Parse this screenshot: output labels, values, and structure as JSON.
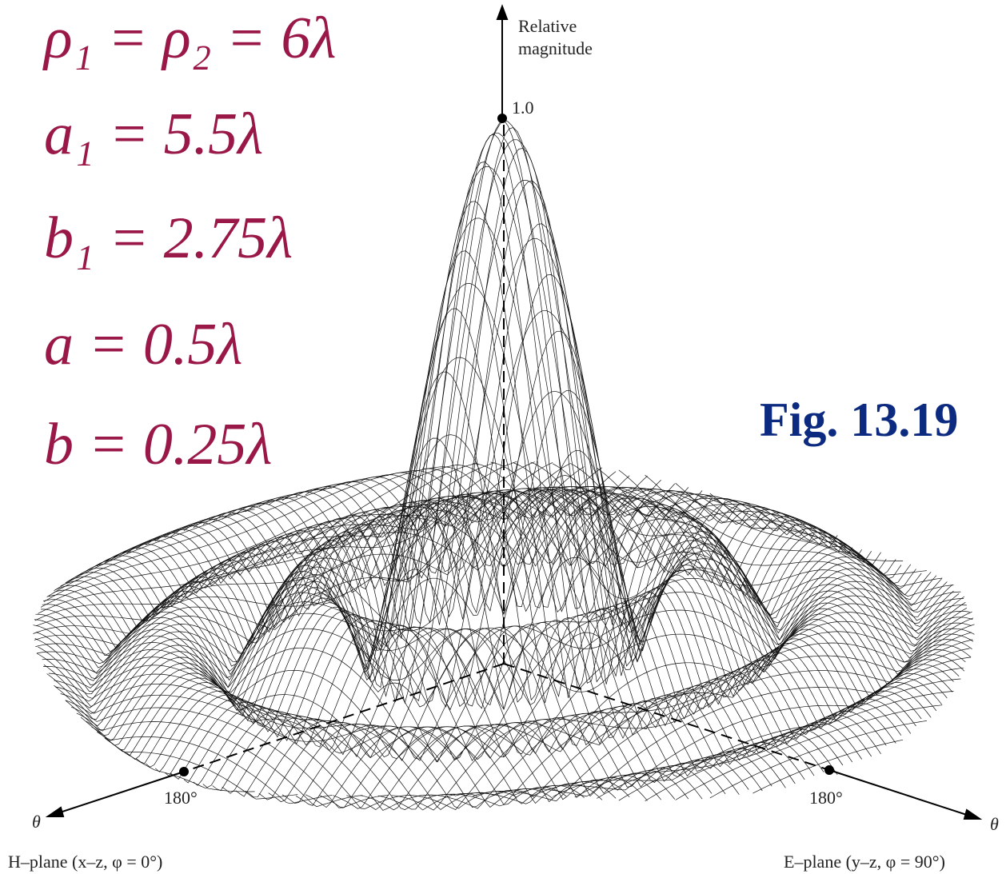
{
  "parameters": [
    "ρ₁ = ρ₂ = 6λ",
    "a₁ = 5.5λ",
    "b₁ = 2.75λ",
    "a = 0.5λ",
    "b = 0.25λ"
  ],
  "figure_label": "Fig. 13.19",
  "vertical_axis": {
    "label_line1": "Relative",
    "label_line2": "magnitude",
    "peak_label": "1.0"
  },
  "left_axis": {
    "tick_label": "180°",
    "axis_label": "θ",
    "plane_label": "H–plane (x–z, φ = 0°)"
  },
  "right_axis": {
    "tick_label": "180°",
    "axis_label": "θ",
    "plane_label": "E–plane (y–z, φ = 90°)"
  }
}
